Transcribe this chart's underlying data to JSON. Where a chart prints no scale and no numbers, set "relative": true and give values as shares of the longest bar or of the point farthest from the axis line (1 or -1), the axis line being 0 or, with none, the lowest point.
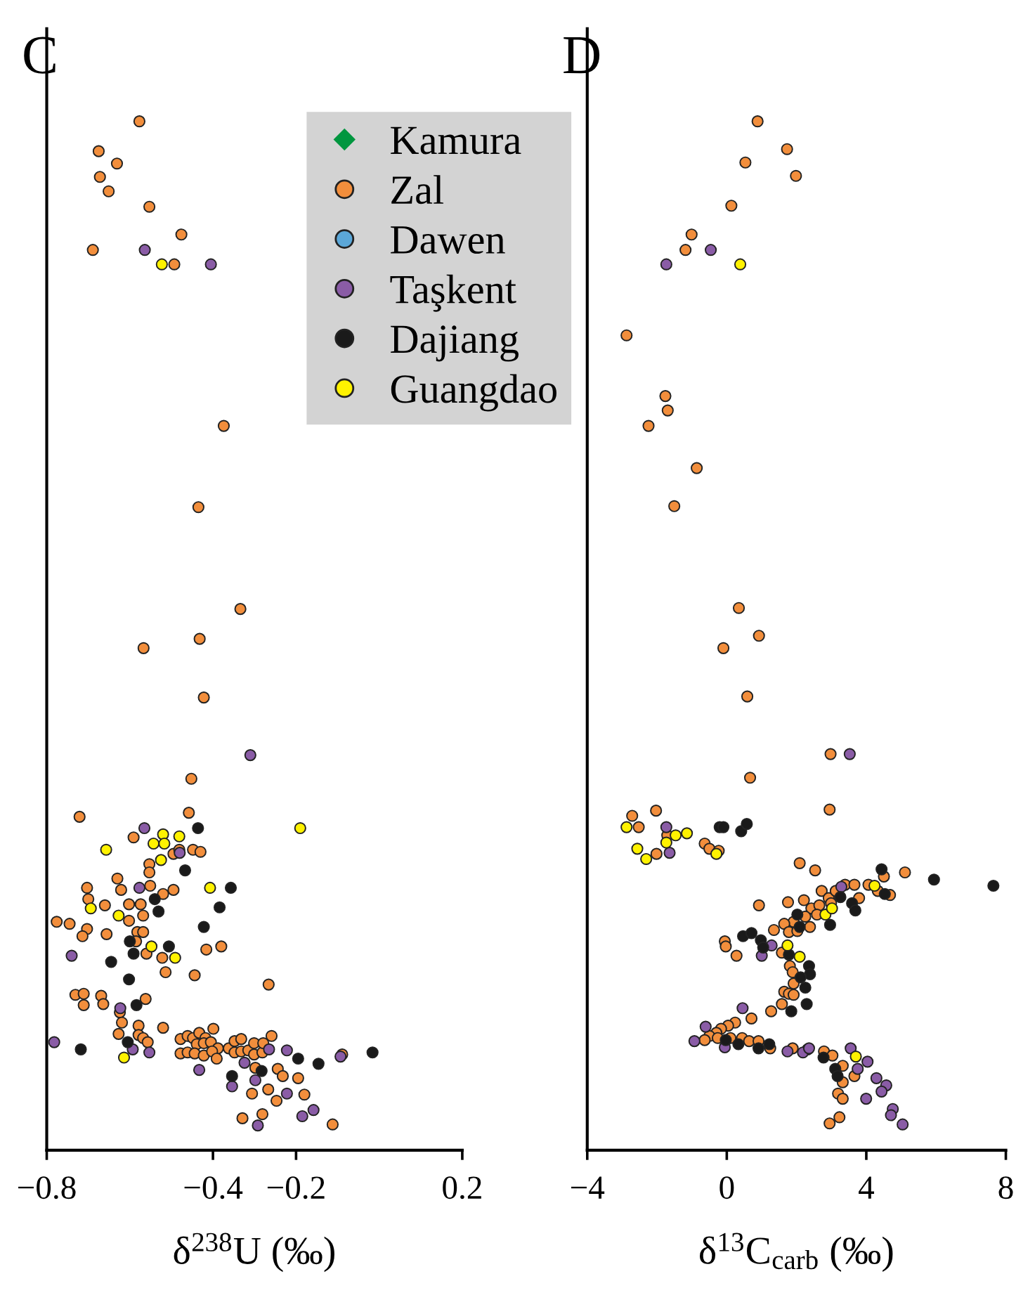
{
  "chart_data": [
    {
      "type": "scatter",
      "title": "C",
      "xlabel": "δ$^{238}$U (‰)",
      "relative": true,
      "xlim": [
        -0.8,
        0.2
      ],
      "xticks": [
        {
          "value": -0.8,
          "label": "−0.8"
        },
        {
          "value": -0.4,
          "label": "−0.4"
        },
        {
          "value": -0.2,
          "label": "−0.2"
        },
        0.2
      ],
      "legend": "top right",
      "grid": false,
      "series": [
        {
          "name": "Kamura",
          "color": "#00963f",
          "marker": "diamond"
        },
        {
          "name": "Zal",
          "color": "#f28e3c",
          "marker": "circle",
          "x": [
            -0.577,
            -0.675,
            -0.631,
            -0.672,
            -0.651,
            -0.553,
            -0.476,
            -0.689,
            -0.493,
            -0.374,
            -0.435,
            -0.334,
            -0.432,
            -0.567,
            -0.422,
            -0.452,
            -0.721,
            -0.458,
            -0.591,
            -0.553,
            -0.553,
            -0.495,
            -0.481,
            -0.448,
            -0.43,
            -0.63,
            -0.703,
            -0.621,
            -0.551,
            -0.7,
            -0.66,
            -0.602,
            -0.574,
            -0.52,
            -0.495,
            -0.568,
            -0.602,
            -0.776,
            -0.745,
            -0.703,
            -0.714,
            -0.656,
            -0.582,
            -0.568,
            -0.585,
            -0.416,
            -0.38,
            -0.56,
            -0.522,
            -0.514,
            -0.444,
            -0.266,
            -0.731,
            -0.711,
            -0.711,
            -0.669,
            -0.664,
            -0.562,
            -0.624,
            -0.619,
            -0.627,
            -0.579,
            -0.579,
            -0.568,
            -0.557,
            -0.52,
            -0.478,
            -0.461,
            -0.448,
            -0.433,
            -0.418,
            -0.399,
            -0.439,
            -0.422,
            -0.405,
            -0.388,
            -0.478,
            -0.461,
            -0.444,
            -0.422,
            -0.402,
            -0.391,
            -0.362,
            -0.348,
            -0.332,
            -0.348,
            -0.332,
            -0.315,
            -0.301,
            -0.301,
            -0.281,
            -0.259,
            -0.279,
            -0.298,
            -0.244,
            -0.232,
            -0.195,
            -0.306,
            -0.267,
            -0.247,
            -0.18,
            -0.281,
            -0.329,
            -0.112,
            -0.089
          ],
          "values": [
            1.0,
            0.971,
            0.959,
            0.946,
            0.932,
            0.917,
            0.89,
            0.875,
            0.861,
            0.704,
            0.625,
            0.526,
            0.497,
            0.488,
            0.44,
            0.361,
            0.324,
            0.328,
            0.304,
            0.278,
            0.27,
            0.288,
            0.292,
            0.292,
            0.29,
            0.264,
            0.255,
            0.253,
            0.257,
            0.244,
            0.238,
            0.239,
            0.239,
            0.249,
            0.253,
            0.228,
            0.223,
            0.222,
            0.22,
            0.215,
            0.208,
            0.21,
            0.212,
            0.212,
            0.203,
            0.195,
            0.198,
            0.191,
            0.187,
            0.173,
            0.17,
            0.161,
            0.151,
            0.152,
            0.141,
            0.15,
            0.142,
            0.147,
            0.134,
            0.124,
            0.113,
            0.121,
            0.112,
            0.109,
            0.105,
            0.119,
            0.108,
            0.111,
            0.109,
            0.114,
            0.109,
            0.118,
            0.103,
            0.104,
            0.105,
            0.099,
            0.094,
            0.095,
            0.094,
            0.092,
            0.096,
            0.089,
            0.099,
            0.106,
            0.108,
            0.095,
            0.096,
            0.097,
            0.104,
            0.093,
            0.095,
            0.111,
            0.104,
            0.08,
            0.079,
            0.072,
            0.07,
            0.055,
            0.059,
            0.048,
            0.054,
            0.035,
            0.031,
            0.025,
            0.093
          ]
        },
        {
          "name": "Dawen",
          "color": "#5ba7d8",
          "marker": "circle"
        },
        {
          "name": "Taşkent",
          "color": "#8a5ca6",
          "marker": "circle",
          "x": [
            -0.564,
            -0.405,
            -0.31,
            -0.565,
            -0.48,
            -0.577,
            -0.74,
            -0.623,
            -0.782,
            -0.593,
            -0.553,
            -0.433,
            -0.324,
            -0.354,
            -0.298,
            -0.265,
            -0.222,
            -0.222,
            -0.158,
            -0.185,
            -0.292,
            -0.093
          ],
          "values": [
            0.875,
            0.861,
            0.384,
            0.313,
            0.289,
            0.255,
            0.189,
            0.138,
            0.105,
            0.098,
            0.095,
            0.078,
            0.085,
            0.062,
            0.068,
            0.098,
            0.097,
            0.055,
            0.039,
            0.033,
            0.024,
            0.091
          ]
        },
        {
          "name": "Dajiang",
          "color": "#1a1a1a",
          "marker": "circle",
          "x": [
            -0.436,
            -0.467,
            -0.357,
            -0.54,
            -0.531,
            -0.384,
            -0.422,
            -0.6,
            -0.506,
            -0.591,
            -0.645,
            -0.602,
            -0.584,
            -0.605,
            -0.718,
            -0.195,
            -0.146,
            -0.016,
            -0.354,
            -0.283
          ],
          "values": [
            0.313,
            0.272,
            0.255,
            0.244,
            0.232,
            0.236,
            0.217,
            0.203,
            0.198,
            0.191,
            0.183,
            0.166,
            0.141,
            0.105,
            0.098,
            0.089,
            0.084,
            0.095,
            0.072,
            0.077
          ]
        },
        {
          "name": "Guangdao",
          "color": "#fff200",
          "marker": "circle",
          "x": [
            -0.523,
            -0.52,
            -0.481,
            -0.543,
            -0.517,
            -0.657,
            -0.525,
            -0.407,
            -0.694,
            -0.627,
            -0.548,
            -0.491,
            -0.19,
            -0.614
          ],
          "values": [
            0.861,
            0.307,
            0.305,
            0.298,
            0.298,
            0.292,
            0.282,
            0.255,
            0.235,
            0.228,
            0.198,
            0.187,
            0.313,
            0.09
          ]
        }
      ]
    },
    {
      "type": "scatter",
      "title": "D",
      "xlabel": "δ$^{13}$C$_{carb}$ (‰)",
      "relative": true,
      "xlim": [
        -4,
        8
      ],
      "xticks": [
        {
          "value": -4,
          "label": "−4"
        },
        0,
        4,
        8
      ],
      "grid": false,
      "series": [
        {
          "color": "#f28e3c",
          "marker": "circle",
          "x": [
            0.883,
            1.728,
            0.534,
            1.983,
            0.131,
            -1.009,
            -1.183,
            -2.873,
            -1.76,
            -1.693,
            -2.243,
            -0.861,
            -1.505,
            0.346,
            0.923,
            -0.097,
            0.588,
            2.975,
            0.668,
            -2.712,
            -2.028,
            -2.524,
            -1.706,
            -2.015,
            -0.633,
            -0.499,
            -0.231,
            2.948,
            2.09,
            2.533,
            5.108,
            0.923,
            1.755,
            2.211,
            2.425,
            2.72,
            2.922,
            3.123,
            3.391,
            3.659,
            4.062,
            4.504,
            4.679,
            4.33,
            2.653,
            2.989,
            3.793,
            2.586,
            2.251,
            1.916,
            1.647,
            1.352,
            1.781,
            2.385,
            2.023,
            -0.056,
            -0.029,
            0.279,
            1.58,
            1.808,
            1.889,
            1.916,
            1.647,
            1.781,
            1.916,
            1.58,
            1.272,
            0.708,
            0.239,
            0.038,
            -0.164,
            -0.298,
            -0.499,
            -0.633,
            -0.258,
            0.105,
            0.44,
            0.641,
            0.91,
            1.245,
            1.889,
            2.318,
            2.787,
            3.029,
            3.324,
            3.659,
            3.324,
            3.19,
            3.324,
            2.948,
            3.23
          ],
          "values": [
            1.0,
            0.973,
            0.96,
            0.947,
            0.918,
            0.89,
            0.875,
            0.792,
            0.733,
            0.719,
            0.704,
            0.663,
            0.626,
            0.527,
            0.5,
            0.488,
            0.441,
            0.385,
            0.362,
            0.325,
            0.33,
            0.314,
            0.306,
            0.288,
            0.298,
            0.293,
            0.291,
            0.331,
            0.279,
            0.272,
            0.27,
            0.238,
            0.241,
            0.243,
            0.235,
            0.252,
            0.245,
            0.252,
            0.258,
            0.258,
            0.258,
            0.266,
            0.248,
            0.252,
            0.238,
            0.24,
            0.245,
            0.229,
            0.227,
            0.222,
            0.22,
            0.214,
            0.212,
            0.217,
            0.213,
            0.203,
            0.198,
            0.189,
            0.192,
            0.179,
            0.173,
            0.162,
            0.154,
            0.152,
            0.151,
            0.142,
            0.135,
            0.128,
            0.124,
            0.121,
            0.118,
            0.114,
            0.111,
            0.107,
            0.109,
            0.109,
            0.109,
            0.106,
            0.106,
            0.099,
            0.099,
            0.098,
            0.096,
            0.092,
            0.082,
            0.072,
            0.066,
            0.055,
            0.05,
            0.026,
            0.032
          ]
        },
        {
          "color": "#8a5ca6",
          "marker": "circle",
          "x": [
            -1.733,
            -0.459,
            3.525,
            -1.733,
            -1.639,
            1.285,
            1.003,
            3.284,
            0.453,
            -0.606,
            -0.928,
            -0.056,
            1.741,
            2.184,
            2.358,
            3.552,
            4.035,
            3.753,
            4.29,
            4.572,
            4.437,
            3.995,
            4.759,
            4.706,
            5.041
          ],
          "values": [
            0.861,
            0.875,
            0.385,
            0.314,
            0.289,
            0.199,
            0.189,
            0.256,
            0.138,
            0.12,
            0.106,
            0.1,
            0.096,
            0.095,
            0.099,
            0.099,
            0.086,
            0.079,
            0.07,
            0.063,
            0.057,
            0.05,
            0.04,
            0.034,
            0.025
          ]
        },
        {
          "color": "#1a1a1a",
          "marker": "circle",
          "x": [
            -0.204,
            -0.097,
            0.413,
            0.574,
            4.437,
            4.531,
            5.94,
            7.643,
            3.257,
            3.592,
            3.686,
            2.962,
            2.023,
            2.09,
            0.467,
            0.708,
            0.977,
            1.044,
            1.781,
            2.358,
            2.385,
            2.117,
            2.251,
            2.291,
            1.849,
            -0.029,
            0.333,
            0.91,
            1.218,
            2.774,
            3.11,
            3.177
          ],
          "values": [
            0.314,
            0.314,
            0.31,
            0.317,
            0.273,
            0.249,
            0.263,
            0.257,
            0.246,
            0.24,
            0.233,
            0.219,
            0.229,
            0.217,
            0.208,
            0.211,
            0.204,
            0.197,
            0.19,
            0.179,
            0.171,
            0.168,
            0.158,
            0.142,
            0.135,
            0.107,
            0.103,
            0.099,
            0.103,
            0.09,
            0.079,
            0.072
          ]
        },
        {
          "color": "#fff200",
          "marker": "circle",
          "x": [
            0.386,
            -2.873,
            -2.565,
            -2.31,
            -1.733,
            -1.465,
            -1.143,
            -0.298,
            1.741,
            2.09,
            2.828,
            3.016,
            4.236,
            3.7
          ],
          "values": [
            0.861,
            0.314,
            0.293,
            0.283,
            0.299,
            0.306,
            0.308,
            0.288,
            0.199,
            0.188,
            0.229,
            0.235,
            0.257,
            0.091
          ]
        }
      ]
    }
  ]
}
